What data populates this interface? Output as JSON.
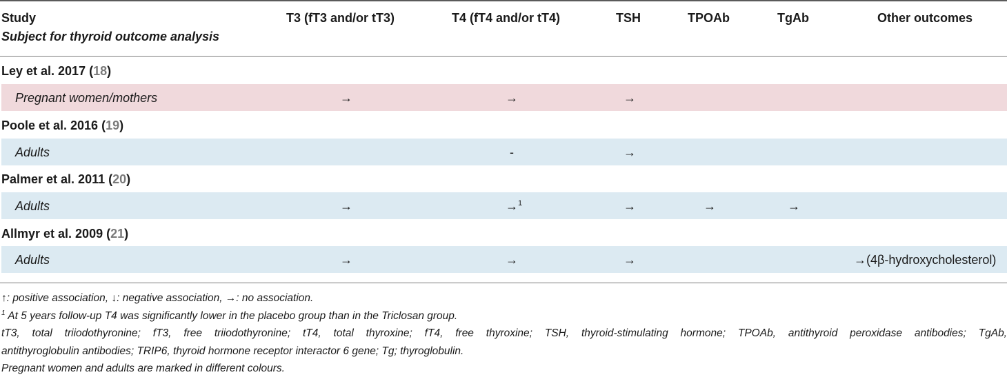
{
  "header": {
    "study": "Study",
    "subject": "Subject for thyroid outcome analysis",
    "t3": "T3 (fT3 and/or tT3)",
    "t4": "T4 (fT4 and/or tT4)",
    "tsh": "TSH",
    "tpoab": "TPOAb",
    "tgab": "TgAb",
    "other": "Other outcomes"
  },
  "studies": [
    {
      "name": "Ley et al. 2017 (",
      "ref": "18",
      "close": ")",
      "subject": "Pregnant women/mothers",
      "t3": "→",
      "t4": "→",
      "t4_sup": "",
      "tsh": "→",
      "tpoab": "",
      "tgab": "",
      "other": ""
    },
    {
      "name": "Poole et al. 2016 (",
      "ref": "19",
      "close": ")",
      "subject": "Adults",
      "t3": "",
      "t4": "-",
      "t4_sup": "",
      "tsh": "→",
      "tpoab": "",
      "tgab": "",
      "other": ""
    },
    {
      "name": "Palmer et al. 2011 (",
      "ref": "20",
      "close": ")",
      "subject": "Adults",
      "t3": "→",
      "t4": "→",
      "t4_sup": "1",
      "tsh": "→",
      "tpoab": "→",
      "tgab": "→",
      "other": ""
    },
    {
      "name": "Allmyr et al. 2009 (",
      "ref": "21",
      "close": ")",
      "subject": "Adults",
      "t3": "→",
      "t4": "→",
      "t4_sup": "",
      "tsh": "→",
      "tpoab": "",
      "tgab": "",
      "other": "→(4β-hydroxycholesterol)"
    }
  ],
  "footnotes": {
    "legend": "↑: positive association, ↓: negative association, →: no association.",
    "note1_sup": "1",
    "note1": " At 5 years follow-up T4 was significantly lower in the placebo group than in the Triclosan group.",
    "abbrev_line1": "tT3, total triiodothyronine; fT3, free triiodothyronine; tT4, total thyroxine; fT4, free thyroxine; TSH, thyroid-stimulating hormone; TPOAb, antithyroid peroxidase antibodies; TgAb,",
    "abbrev_line2": "antithyroglobulin antibodies; TRIP6, thyroid hormone receptor interactor 6 gene; Tg; thyroglobulin.",
    "colours": "Pregnant women and adults are marked in different colours."
  },
  "colors": {
    "pregnant_band": "#f0d9dc",
    "adult_band": "#dceaf2",
    "ref_link": "#7a7a7a",
    "rule": "#5a5a5a"
  }
}
